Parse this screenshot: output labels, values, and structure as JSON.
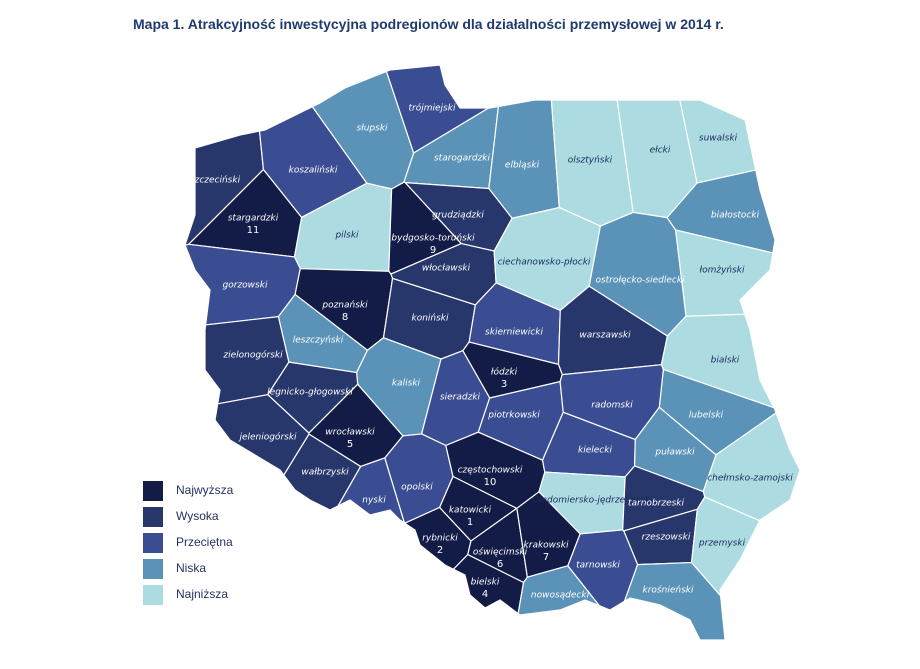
{
  "title": "Mapa 1. Atrakcyjność inwestycyjna podregionów dla działalności przemysłowej w 2014 r.",
  "legend": [
    {
      "label": "Najwyższa",
      "color": "#131b47"
    },
    {
      "label": "Wysoka",
      "color": "#27366b"
    },
    {
      "label": "Przeciętna",
      "color": "#3a4d92"
    },
    {
      "label": "Niska",
      "color": "#5b92b8"
    },
    {
      "label": "Najniższa",
      "color": "#acdbe2"
    }
  ],
  "regions": [
    {
      "name": "szczeciński",
      "color": "#27366b"
    },
    {
      "name": "stargardzki",
      "rank": 11,
      "color": "#131b47"
    },
    {
      "name": "koszaliński",
      "color": "#3a4d92"
    },
    {
      "name": "słupski",
      "color": "#5b92b8"
    },
    {
      "name": "trójmiejski",
      "color": "#3a4d92"
    },
    {
      "name": "starogardzki",
      "color": "#5b92b8"
    },
    {
      "name": "elbląski",
      "color": "#5b92b8"
    },
    {
      "name": "olsztyński",
      "color": "#acdbe2"
    },
    {
      "name": "ełcki",
      "color": "#acdbe2"
    },
    {
      "name": "suwalski",
      "color": "#acdbe2"
    },
    {
      "name": "białostocki",
      "color": "#5b92b8"
    },
    {
      "name": "łomżyński",
      "color": "#acdbe2"
    },
    {
      "name": "pilski",
      "color": "#acdbe2"
    },
    {
      "name": "grudziądzki",
      "color": "#27366b"
    },
    {
      "name": "bydgosko-toruński",
      "rank": 9,
      "color": "#131b47"
    },
    {
      "name": "włocławski",
      "color": "#27366b"
    },
    {
      "name": "ciechanowsko-płocki",
      "color": "#acdbe2"
    },
    {
      "name": "ostrołęcko-siedlecki",
      "color": "#5b92b8"
    },
    {
      "name": "gorzowski",
      "color": "#3a4d92"
    },
    {
      "name": "poznański",
      "rank": 8,
      "color": "#131b47"
    },
    {
      "name": "koniński",
      "color": "#27366b"
    },
    {
      "name": "skierniewicki",
      "color": "#3a4d92"
    },
    {
      "name": "warszawski",
      "color": "#27366b"
    },
    {
      "name": "bialski",
      "color": "#acdbe2"
    },
    {
      "name": "leszczyński",
      "color": "#5b92b8"
    },
    {
      "name": "zielonogórski",
      "color": "#27366b"
    },
    {
      "name": "kaliski",
      "color": "#5b92b8"
    },
    {
      "name": "łódzki",
      "rank": 3,
      "color": "#131b47"
    },
    {
      "name": "sieradzki",
      "color": "#3a4d92"
    },
    {
      "name": "lubelski",
      "color": "#5b92b8"
    },
    {
      "name": "legnicko-głogowski",
      "color": "#27366b"
    },
    {
      "name": "wrocławski",
      "rank": 5,
      "color": "#131b47"
    },
    {
      "name": "piotrkowski",
      "color": "#3a4d92"
    },
    {
      "name": "radomski",
      "color": "#3a4d92"
    },
    {
      "name": "jeleniogórski",
      "color": "#27366b"
    },
    {
      "name": "wałbrzyski",
      "color": "#27366b"
    },
    {
      "name": "opolski",
      "color": "#3a4d92"
    },
    {
      "name": "częstochowski",
      "rank": 10,
      "color": "#131b47"
    },
    {
      "name": "kielecki",
      "color": "#3a4d92"
    },
    {
      "name": "puławski",
      "color": "#5b92b8"
    },
    {
      "name": "chełmsko-zamojski",
      "color": "#acdbe2"
    },
    {
      "name": "nyski",
      "color": "#3a4d92"
    },
    {
      "name": "sandomiersko-jędrzejowski",
      "color": "#acdbe2"
    },
    {
      "name": "tarnobrzeski",
      "color": "#27366b"
    },
    {
      "name": "katowicki",
      "rank": 1,
      "color": "#131b47"
    },
    {
      "name": "rybnicki",
      "rank": 2,
      "color": "#131b47"
    },
    {
      "name": "oświęcimski",
      "rank": 6,
      "color": "#131b47"
    },
    {
      "name": "krakowski",
      "rank": 7,
      "color": "#131b47"
    },
    {
      "name": "rzeszowski",
      "color": "#27366b"
    },
    {
      "name": "przemyski",
      "color": "#acdbe2"
    },
    {
      "name": "tarnowski",
      "color": "#3a4d92"
    },
    {
      "name": "bielski",
      "rank": 4,
      "color": "#131b47"
    },
    {
      "name": "nowosądecki",
      "color": "#5b92b8"
    },
    {
      "name": "krośnieński",
      "color": "#5b92b8"
    }
  ]
}
